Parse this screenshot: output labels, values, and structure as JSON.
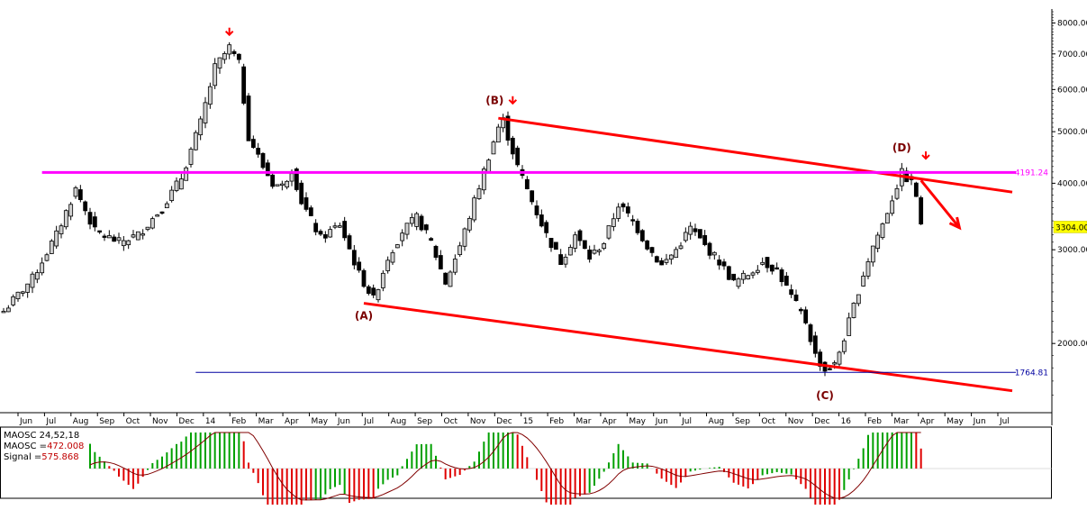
{
  "chart_data": {
    "type": "candlestick",
    "y_scale": "log",
    "ylim": [
      1500,
      8500
    ],
    "y_ticks": [
      {
        "value": 2000,
        "label": "2000.00"
      },
      {
        "value": 3000,
        "label": "3000.00"
      },
      {
        "value": 4000,
        "label": "4000.00"
      },
      {
        "value": 5000,
        "label": "5000.00"
      },
      {
        "value": 6000,
        "label": "6000.00"
      },
      {
        "value": 7000,
        "label": "7000.00"
      },
      {
        "value": 8000,
        "label": "8000.00"
      }
    ],
    "x_ticks": [
      "Jun",
      "Jul",
      "Aug",
      "Sep",
      "Oct",
      "Nov",
      "Dec",
      "14",
      "Feb",
      "Mar",
      "Apr",
      "May",
      "Jun",
      "Jul",
      "Aug",
      "Sep",
      "Oct",
      "Nov",
      "Dec",
      "15",
      "Feb",
      "Mar",
      "Apr",
      "May",
      "Jun",
      "Jul",
      "Aug",
      "Sep",
      "Oct",
      "Nov",
      "Dec",
      "16",
      "Feb",
      "Mar",
      "Apr",
      "May",
      "Jun",
      "Jul"
    ],
    "price_path": [
      [
        0,
        2300
      ],
      [
        6,
        2650
      ],
      [
        11,
        3200
      ],
      [
        15,
        3900
      ],
      [
        19,
        3250
      ],
      [
        24,
        3100
      ],
      [
        28,
        3200
      ],
      [
        33,
        3600
      ],
      [
        37,
        4100
      ],
      [
        41,
        5200
      ],
      [
        44,
        6600
      ],
      [
        47,
        7200
      ],
      [
        49,
        6700
      ],
      [
        51,
        4900
      ],
      [
        54,
        4300
      ],
      [
        56,
        4000
      ],
      [
        58,
        3950
      ],
      [
        60,
        4250
      ],
      [
        62,
        3700
      ],
      [
        66,
        3150
      ],
      [
        70,
        3350
      ],
      [
        74,
        2700
      ],
      [
        77,
        2420
      ],
      [
        80,
        2900
      ],
      [
        83,
        3250
      ],
      [
        86,
        3450
      ],
      [
        89,
        3100
      ],
      [
        92,
        2600
      ],
      [
        95,
        3050
      ],
      [
        98,
        3700
      ],
      [
        101,
        4500
      ],
      [
        103,
        5100
      ],
      [
        104,
        5250
      ],
      [
        105,
        4900
      ],
      [
        107,
        4300
      ],
      [
        110,
        3700
      ],
      [
        113,
        3200
      ],
      [
        116,
        2850
      ],
      [
        119,
        3200
      ],
      [
        122,
        2900
      ],
      [
        125,
        3100
      ],
      [
        128,
        3650
      ],
      [
        131,
        3400
      ],
      [
        134,
        3050
      ],
      [
        137,
        2800
      ],
      [
        140,
        3000
      ],
      [
        143,
        3300
      ],
      [
        146,
        3050
      ],
      [
        149,
        2850
      ],
      [
        152,
        2600
      ],
      [
        155,
        2700
      ],
      [
        158,
        2850
      ],
      [
        161,
        2750
      ],
      [
        164,
        2450
      ],
      [
        167,
        2200
      ],
      [
        169,
        1900
      ],
      [
        171,
        1780
      ],
      [
        173,
        1820
      ],
      [
        175,
        2050
      ],
      [
        177,
        2350
      ],
      [
        179,
        2700
      ],
      [
        181,
        3050
      ],
      [
        183,
        3350
      ],
      [
        185,
        3750
      ],
      [
        187,
        4180
      ],
      [
        189,
        4000
      ],
      [
        190,
        3800
      ],
      [
        191,
        3304
      ]
    ],
    "annotations": [
      {
        "label": "(A)",
        "x": 75,
        "y": 2420
      },
      {
        "label": "(B)",
        "x": 103,
        "y": 5250
      },
      {
        "label": "(C)",
        "x": 171,
        "y": 1780
      },
      {
        "label": "(D)",
        "x": 187,
        "y": 4180
      }
    ],
    "horizontal_lines": [
      {
        "value": 4191.24,
        "label": "4191.24",
        "color": "#ff00ff"
      },
      {
        "value": 1764.81,
        "label": "1764.81",
        "color": "#0000a0"
      }
    ],
    "last_price": {
      "value": 3304.0,
      "label": "3304.00"
    },
    "channel": {
      "upper": [
        [
          103,
          5300
        ],
        [
          210,
          3850
        ]
      ],
      "lower": [
        [
          75,
          2380
        ],
        [
          210,
          1630
        ]
      ]
    },
    "projection_arrow": [
      [
        191,
        4050
      ],
      [
        199,
        3300
      ]
    ],
    "down_markers": [
      [
        47,
        7600
      ],
      [
        106,
        5650
      ],
      [
        192,
        4450
      ]
    ],
    "indicator": {
      "title": "MAOSC 24,52,18",
      "maosc_label": "MAOSC =",
      "maosc_value": "472.008",
      "signal_label": "Signal =",
      "signal_value": "575.868"
    }
  }
}
